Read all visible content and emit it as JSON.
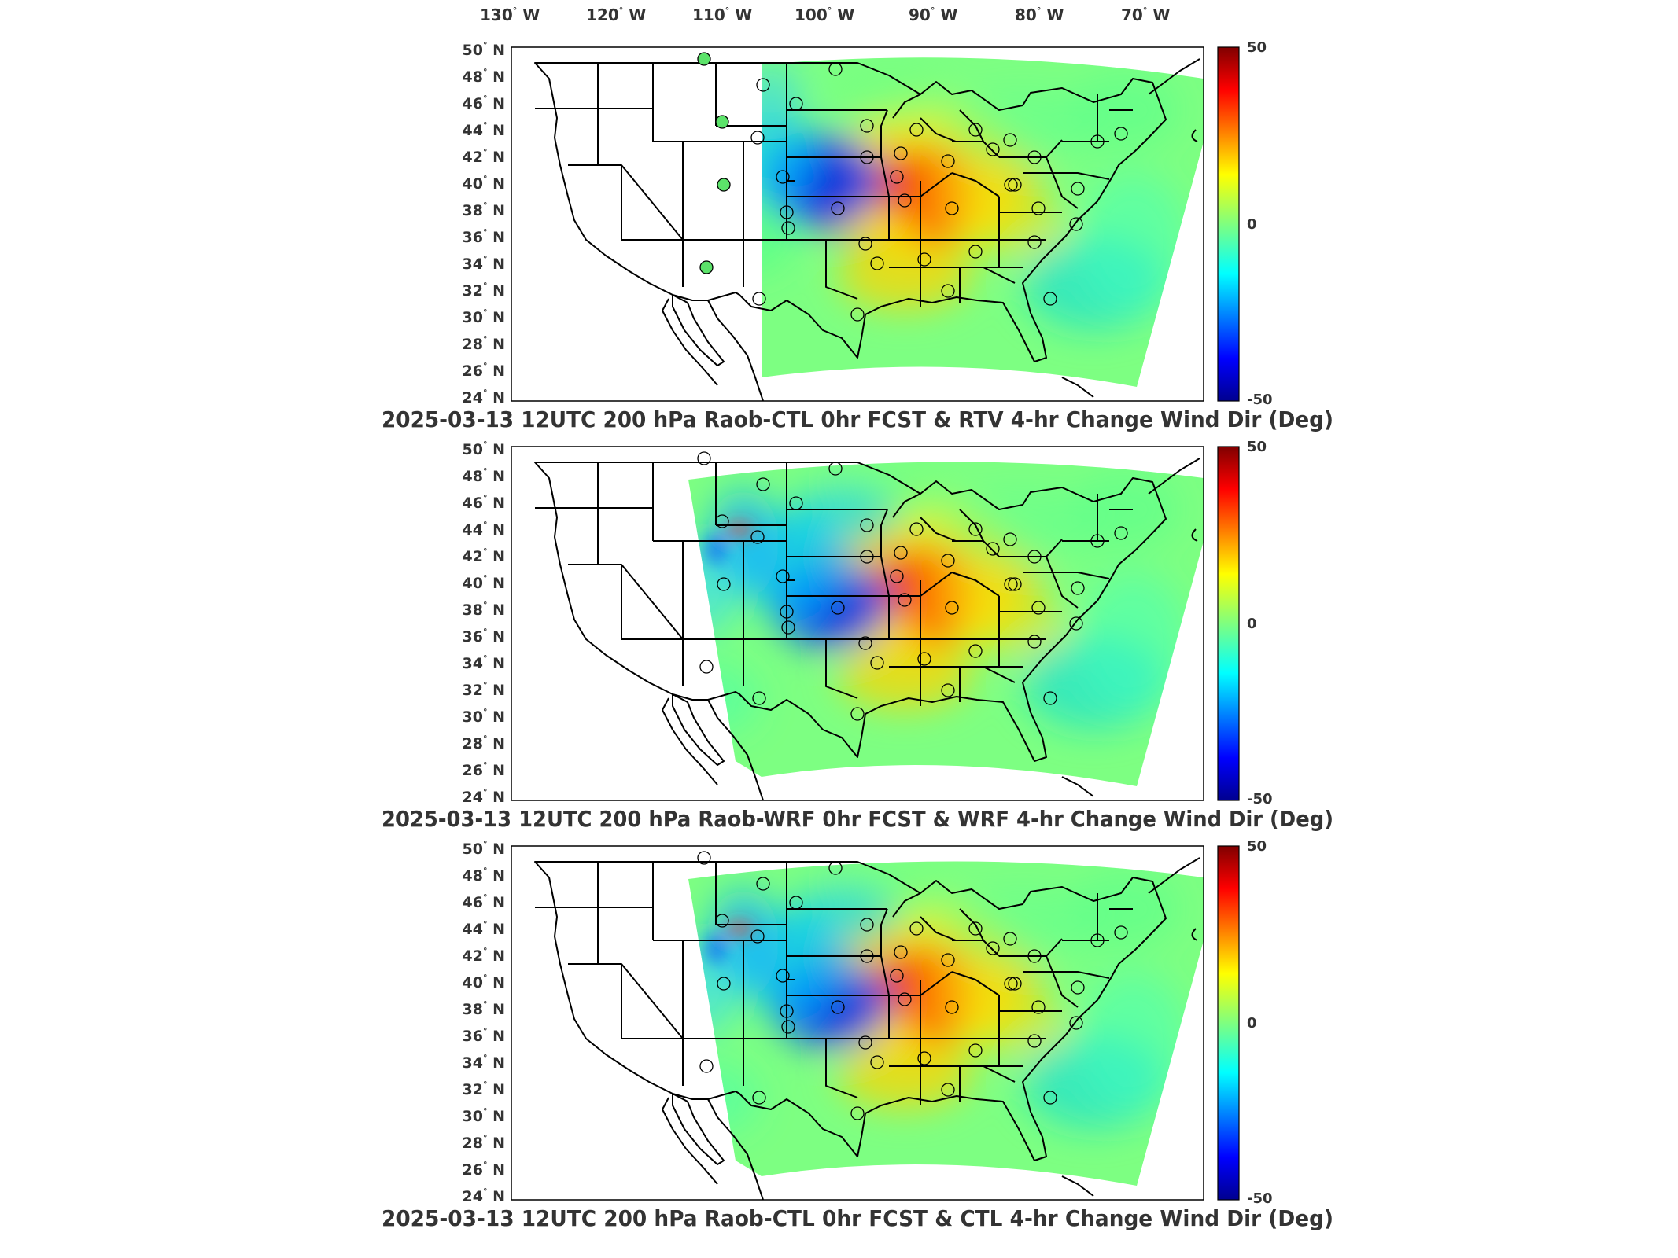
{
  "lon_ticks": [
    {
      "deg": "130",
      "hemi": "W"
    },
    {
      "deg": "120",
      "hemi": "W"
    },
    {
      "deg": "110",
      "hemi": "W"
    },
    {
      "deg": "100",
      "hemi": "W"
    },
    {
      "deg": "90",
      "hemi": "W"
    },
    {
      "deg": "80",
      "hemi": "W"
    },
    {
      "deg": "70",
      "hemi": "W"
    }
  ],
  "lat_ticks": [
    {
      "deg": "50",
      "hemi": "N"
    },
    {
      "deg": "48",
      "hemi": "N"
    },
    {
      "deg": "46",
      "hemi": "N"
    },
    {
      "deg": "44",
      "hemi": "N"
    },
    {
      "deg": "42",
      "hemi": "N"
    },
    {
      "deg": "40",
      "hemi": "N"
    },
    {
      "deg": "38",
      "hemi": "N"
    },
    {
      "deg": "36",
      "hemi": "N"
    },
    {
      "deg": "34",
      "hemi": "N"
    },
    {
      "deg": "32",
      "hemi": "N"
    },
    {
      "deg": "30",
      "hemi": "N"
    },
    {
      "deg": "28",
      "hemi": "N"
    },
    {
      "deg": "26",
      "hemi": "N"
    },
    {
      "deg": "24",
      "hemi": "N"
    }
  ],
  "colorbar": {
    "max_label": "50",
    "mid_label": "0",
    "min_label": "-50",
    "range": [
      -50,
      50
    ],
    "colormap": [
      "#00008f",
      "#0000ff",
      "#00ffff",
      "#7fff7f",
      "#ffff00",
      "#ff0000",
      "#800000"
    ]
  },
  "panels": [
    {
      "title": "2025-03-13 12UTC 200 hPa Raob-CTL 0hr FCST & RTV 4-hr Change Wind Dir (Deg)",
      "domain": "narrow"
    },
    {
      "title": "2025-03-13 12UTC 200 hPa Raob-WRF 0hr FCST & WRF 4-hr Change Wind Dir (Deg)",
      "domain": "wide"
    },
    {
      "title": "2025-03-13 12UTC 200 hPa Raob-CTL 0hr FCST & CTL 4-hr Change Wind Dir (Deg)",
      "domain": "wide"
    }
  ]
}
